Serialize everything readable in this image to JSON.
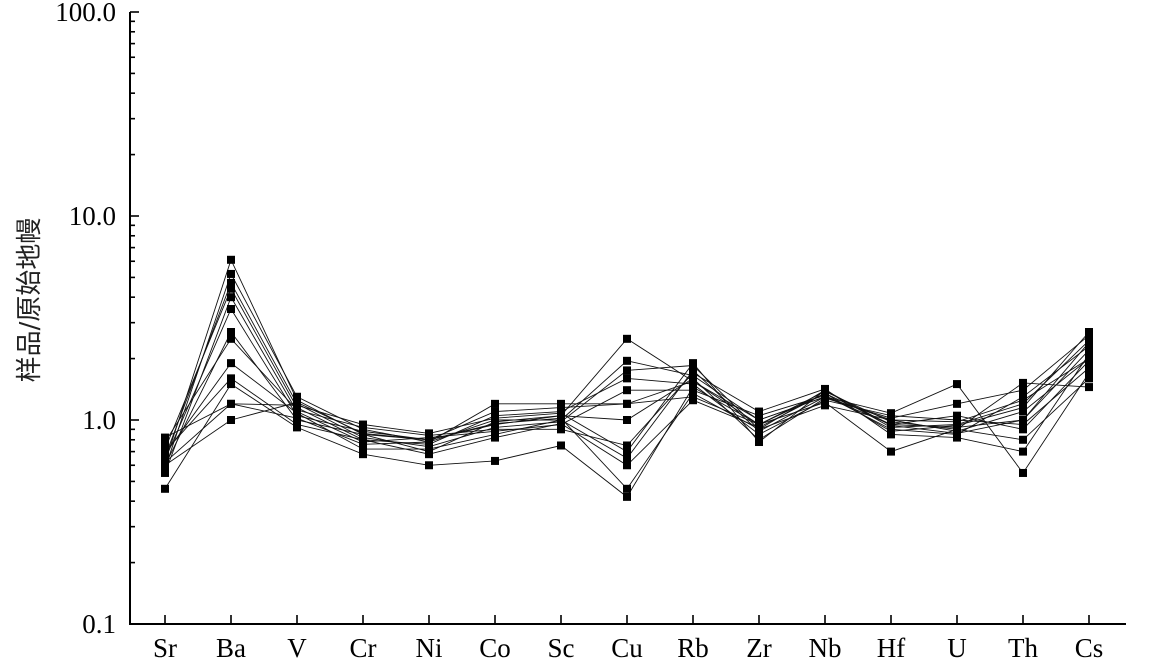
{
  "chart_data": {
    "type": "line",
    "yscale": "log",
    "ylim": [
      0.1,
      100.0
    ],
    "yticks": [
      0.1,
      1.0,
      10.0,
      100.0
    ],
    "ytick_labels": [
      "0.1",
      "1.0",
      "10.0",
      "100.0"
    ],
    "ylabel": "样品/原始地幔",
    "xlabel": "",
    "title": "",
    "categories": [
      "Sr",
      "Ba",
      "V",
      "Cr",
      "Ni",
      "Co",
      "Sc",
      "Cu",
      "Rb",
      "Zr",
      "Nb",
      "Hf",
      "U",
      "Th",
      "Cs"
    ],
    "grid": false,
    "legend": false,
    "marker": "square",
    "series": [
      {
        "values": [
          0.62,
          6.1,
          1.25,
          0.85,
          0.8,
          0.95,
          1.05,
          2.5,
          1.55,
          0.95,
          1.35,
          0.95,
          0.92,
          1.0,
          2.2
        ]
      },
      {
        "values": [
          0.58,
          5.2,
          1.3,
          0.9,
          0.78,
          1.0,
          1.0,
          1.95,
          1.65,
          1.0,
          1.3,
          1.0,
          0.88,
          1.1,
          2.0
        ]
      },
      {
        "values": [
          0.66,
          4.7,
          1.2,
          0.82,
          0.74,
          0.92,
          0.98,
          1.75,
          1.85,
          0.9,
          1.4,
          0.92,
          0.95,
          1.2,
          2.45
        ]
      },
      {
        "values": [
          0.72,
          4.4,
          1.15,
          0.8,
          0.76,
          1.05,
          1.1,
          1.6,
          1.5,
          0.85,
          1.25,
          1.05,
          1.0,
          0.95,
          1.8
        ]
      },
      {
        "values": [
          0.55,
          4.0,
          1.1,
          0.78,
          0.82,
          0.88,
          0.95,
          1.4,
          1.4,
          1.05,
          1.32,
          0.9,
          0.85,
          1.3,
          2.3
        ]
      },
      {
        "values": [
          0.64,
          3.5,
          1.05,
          0.88,
          0.8,
          1.1,
          1.15,
          1.2,
          1.3,
          0.95,
          1.38,
          0.98,
          0.9,
          0.8,
          1.6
        ]
      },
      {
        "values": [
          0.6,
          2.7,
          1.0,
          0.85,
          0.7,
          0.98,
          1.05,
          1.0,
          1.6,
          0.8,
          1.28,
          1.02,
          1.2,
          1.4,
          2.6
        ]
      },
      {
        "values": [
          0.78,
          2.5,
          1.12,
          0.92,
          0.84,
          0.9,
          0.9,
          0.75,
          1.7,
          1.1,
          1.42,
          0.85,
          0.82,
          0.7,
          2.1
        ]
      },
      {
        "values": [
          0.68,
          1.9,
          1.08,
          0.72,
          0.72,
          0.85,
          1.0,
          0.65,
          1.75,
          0.88,
          1.3,
          0.95,
          1.05,
          0.9,
          1.95
        ]
      },
      {
        "values": [
          0.7,
          1.6,
          0.95,
          0.8,
          0.68,
          0.82,
          0.96,
          0.6,
          1.25,
          0.92,
          1.35,
          0.88,
          0.94,
          1.15,
          2.7
        ]
      },
      {
        "values": [
          0.46,
          1.5,
          0.92,
          0.68,
          0.6,
          0.63,
          0.75,
          0.42,
          1.45,
          0.95,
          1.22,
          0.7,
          0.9,
          1.52,
          1.45
        ]
      },
      {
        "values": [
          0.62,
          1.2,
          1.02,
          0.76,
          0.78,
          1.2,
          1.2,
          1.2,
          1.55,
          1.0,
          1.3,
          1.08,
          1.5,
          0.55,
          1.7
        ]
      },
      {
        "values": [
          0.82,
          1.2,
          1.18,
          0.95,
          0.86,
          1.02,
          1.08,
          0.7,
          1.9,
          0.78,
          1.4,
          0.94,
          0.86,
          1.0,
          2.4
        ]
      },
      {
        "values": [
          0.6,
          1.0,
          1.22,
          0.86,
          0.8,
          0.96,
          1.02,
          0.46,
          1.35,
          0.9,
          1.18,
          1.0,
          0.98,
          1.25,
          2.0
        ]
      }
    ]
  }
}
